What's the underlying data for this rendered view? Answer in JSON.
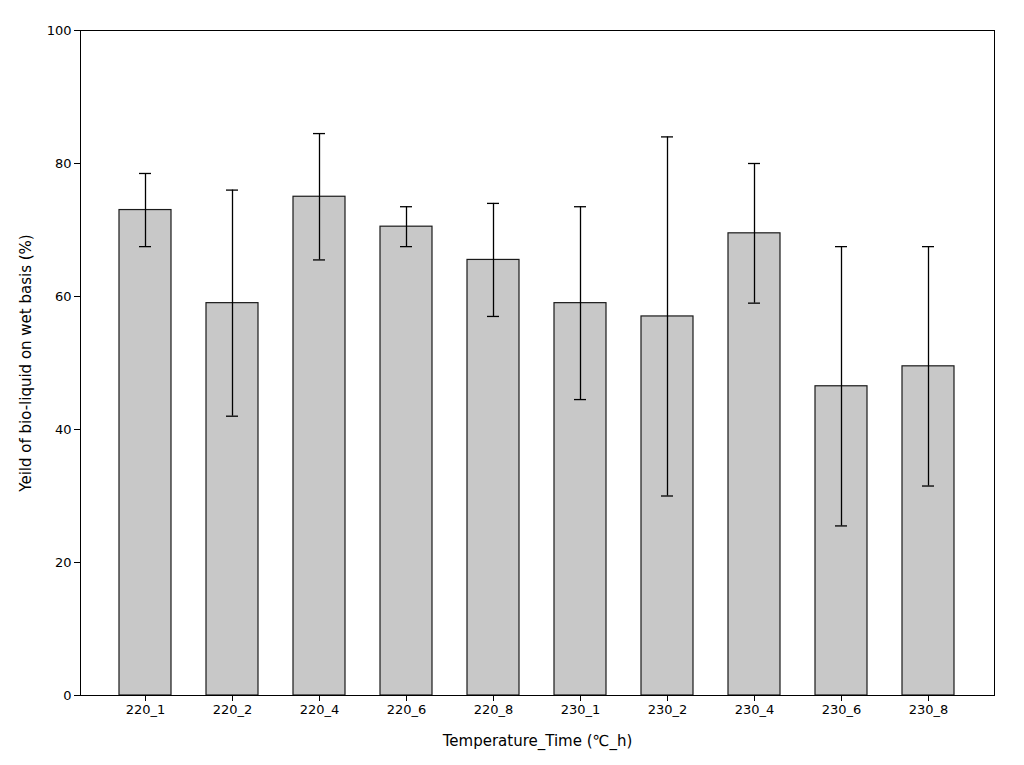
{
  "chart_data": {
    "type": "bar",
    "categories": [
      "220_1",
      "220_2",
      "220_4",
      "220_6",
      "220_8",
      "230_1",
      "230_2",
      "230_4",
      "230_6",
      "230_8"
    ],
    "values": [
      73.0,
      59.0,
      75.0,
      70.5,
      65.5,
      59.0,
      57.0,
      69.5,
      46.5,
      49.5
    ],
    "errors": [
      5.5,
      17.0,
      9.5,
      3.0,
      8.5,
      14.5,
      27.0,
      10.5,
      21.0,
      18.0
    ],
    "color": "#c8c8c8",
    "xlabel": "Temperature_Time (℃_h)",
    "ylabel": "Yeild of bio-liquid on wet basis (%)",
    "ylim": [
      0,
      100
    ],
    "yticks": [
      0,
      20,
      40,
      60,
      80,
      100
    ],
    "grid": false
  }
}
